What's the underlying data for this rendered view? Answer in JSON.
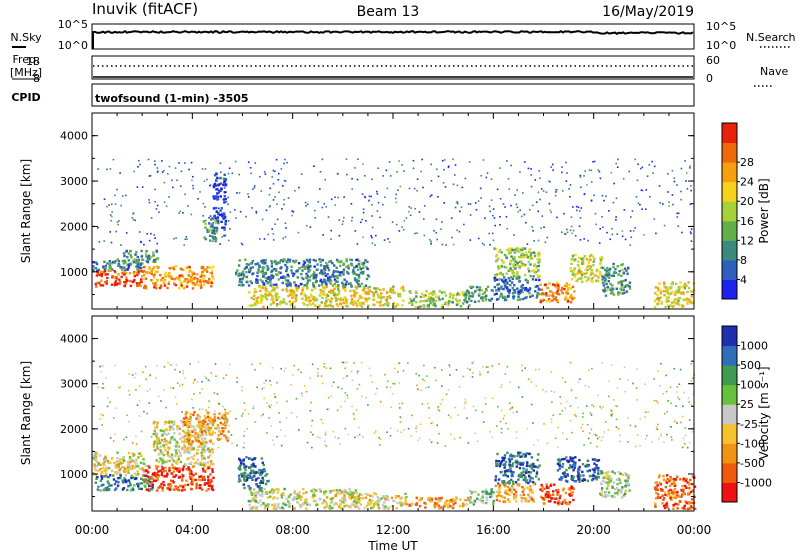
{
  "header": {
    "station": "Inuvik (fitACF)",
    "beam": "Beam 13",
    "date": "16/May/2019"
  },
  "top_panels": {
    "nsky_label": "N.Sky",
    "nsky_ticks": [
      "10^5",
      "10^0"
    ],
    "nsearch_label": "N.Search",
    "nsearch_ticks": [
      "10^5",
      "10^0"
    ],
    "freq_label": "Freq.",
    "freq_unit": "[MHz]",
    "freq_ticks": [
      "18",
      "8"
    ],
    "nave_label": "Nave",
    "nave_ticks": [
      "60",
      "0"
    ],
    "cpid_label": "CPID",
    "program": "twofsound (1-min) -3505"
  },
  "colors": {
    "power_scale": [
      "#1e22ee",
      "#2f5fbd",
      "#3b8a7f",
      "#62b04a",
      "#a6d13a",
      "#f7d21a",
      "#f5a10f",
      "#ef6a0a",
      "#e8210b"
    ],
    "velocity_scale": [
      "#ee1111",
      "#ef5a0c",
      "#f39313",
      "#f5c22b",
      "#c8c8c8",
      "#66c23a",
      "#3f9a52",
      "#2f6fb8",
      "#1e2fb0"
    ]
  },
  "chart_data": [
    {
      "type": "heatmap",
      "panel": "power",
      "ylabel": "Slant Range [km]",
      "ylim": [
        180,
        4500
      ],
      "yticks": [
        "1000",
        "2000",
        "3000",
        "4000"
      ],
      "xlim_hours": [
        0,
        24
      ],
      "xticks": [
        "00:00",
        "04:00",
        "08:00",
        "12:00",
        "16:00",
        "20:00",
        "00:00"
      ],
      "colorbar_label": "Power [dB]",
      "colorbar_ticks": [
        "4",
        "8",
        "12",
        "16",
        "20",
        "24",
        "28"
      ],
      "colorbar_range": [
        0,
        30
      ],
      "regions": [
        {
          "t": [
            0.0,
            2.0
          ],
          "r": [
            1050,
            1300
          ],
          "level": 0.25
        },
        {
          "t": [
            0.1,
            2.0
          ],
          "r": [
            700,
            1050
          ],
          "level": 0.9
        },
        {
          "t": [
            2.0,
            4.8
          ],
          "r": [
            650,
            1150
          ],
          "level": 0.75
        },
        {
          "t": [
            1.2,
            2.6
          ],
          "r": [
            1200,
            1500
          ],
          "level": 0.3
        },
        {
          "t": [
            4.4,
            5.0
          ],
          "r": [
            1700,
            2200
          ],
          "level": 0.35
        },
        {
          "t": [
            4.8,
            5.3
          ],
          "r": [
            1900,
            3200
          ],
          "level": 0.1
        },
        {
          "t": [
            5.7,
            7.0
          ],
          "r": [
            700,
            1300
          ],
          "level": 0.25
        },
        {
          "t": [
            6.2,
            12.4
          ],
          "r": [
            250,
            700
          ],
          "level": 0.6
        },
        {
          "t": [
            7.0,
            11.0
          ],
          "r": [
            700,
            1300
          ],
          "level": 0.25
        },
        {
          "t": [
            12.6,
            15.0
          ],
          "r": [
            250,
            600
          ],
          "level": 0.45
        },
        {
          "t": [
            14.8,
            16.0
          ],
          "r": [
            350,
            700
          ],
          "level": 0.3
        },
        {
          "t": [
            16.0,
            17.8
          ],
          "r": [
            900,
            1550
          ],
          "level": 0.45
        },
        {
          "t": [
            16.0,
            17.8
          ],
          "r": [
            400,
            900
          ],
          "level": 0.2
        },
        {
          "t": [
            17.8,
            19.2
          ],
          "r": [
            350,
            800
          ],
          "level": 0.75
        },
        {
          "t": [
            19.0,
            20.3
          ],
          "r": [
            800,
            1400
          ],
          "level": 0.55
        },
        {
          "t": [
            20.3,
            21.4
          ],
          "r": [
            500,
            1200
          ],
          "level": 0.3
        },
        {
          "t": [
            22.4,
            24.0
          ],
          "r": [
            250,
            800
          ],
          "level": 0.6
        }
      ],
      "sparse": [
        {
          "t": [
            0.2,
            24.0
          ],
          "r": [
            1600,
            3500
          ],
          "density": 0.11
        }
      ]
    },
    {
      "type": "heatmap",
      "panel": "velocity",
      "ylabel": "Slant Range [km]",
      "ylim": [
        180,
        4500
      ],
      "yticks": [
        "1000",
        "2000",
        "3000",
        "4000"
      ],
      "xlim_hours": [
        0,
        24
      ],
      "xticks": [
        "00:00",
        "04:00",
        "08:00",
        "12:00",
        "16:00",
        "20:00",
        "00:00"
      ],
      "xlabel": "Time UT",
      "colorbar_label": "Velocity [m s⁻¹]",
      "colorbar_ticks": [
        "-1000",
        "-500",
        "-100",
        "-25",
        "25",
        "100",
        "500",
        "1000"
      ],
      "colorbar_range": [
        -1250,
        1250
      ],
      "regions": [
        {
          "t": [
            0.0,
            2.2
          ],
          "r": [
            1000,
            1500
          ],
          "level": 0.45
        },
        {
          "t": [
            0.1,
            2.4
          ],
          "r": [
            650,
            1000
          ],
          "level": 0.8
        },
        {
          "t": [
            2.0,
            4.8
          ],
          "r": [
            650,
            1200
          ],
          "level": 0.12
        },
        {
          "t": [
            2.4,
            4.8
          ],
          "r": [
            1200,
            2200
          ],
          "level": 0.45
        },
        {
          "t": [
            3.6,
            5.4
          ],
          "r": [
            1700,
            2400
          ],
          "level": 0.3
        },
        {
          "t": [
            5.8,
            7.0
          ],
          "r": [
            700,
            1400
          ],
          "level": 0.85
        },
        {
          "t": [
            6.2,
            8.0
          ],
          "r": [
            250,
            700
          ],
          "level": 0.55
        },
        {
          "t": [
            8.0,
            10.5
          ],
          "r": [
            250,
            700
          ],
          "level": 0.45
        },
        {
          "t": [
            10.5,
            12.5
          ],
          "r": [
            250,
            600
          ],
          "level": 0.45
        },
        {
          "t": [
            12.5,
            15.0
          ],
          "r": [
            250,
            500
          ],
          "level": 0.3
        },
        {
          "t": [
            15.0,
            16.0
          ],
          "r": [
            350,
            700
          ],
          "level": 0.62
        },
        {
          "t": [
            16.0,
            17.8
          ],
          "r": [
            800,
            1500
          ],
          "level": 0.85
        },
        {
          "t": [
            16.0,
            17.6
          ],
          "r": [
            400,
            800
          ],
          "level": 0.3
        },
        {
          "t": [
            17.8,
            19.2
          ],
          "r": [
            350,
            800
          ],
          "level": 0.15
        },
        {
          "t": [
            18.5,
            20.2
          ],
          "r": [
            850,
            1400
          ],
          "level": 0.88
        },
        {
          "t": [
            20.2,
            21.4
          ],
          "r": [
            500,
            1100
          ],
          "level": 0.55
        },
        {
          "t": [
            22.4,
            24.0
          ],
          "r": [
            250,
            1000
          ],
          "level": 0.18
        }
      ],
      "sparse": [
        {
          "t": [
            0.2,
            24.0
          ],
          "r": [
            1600,
            3500
          ],
          "density": 0.11
        }
      ]
    }
  ]
}
